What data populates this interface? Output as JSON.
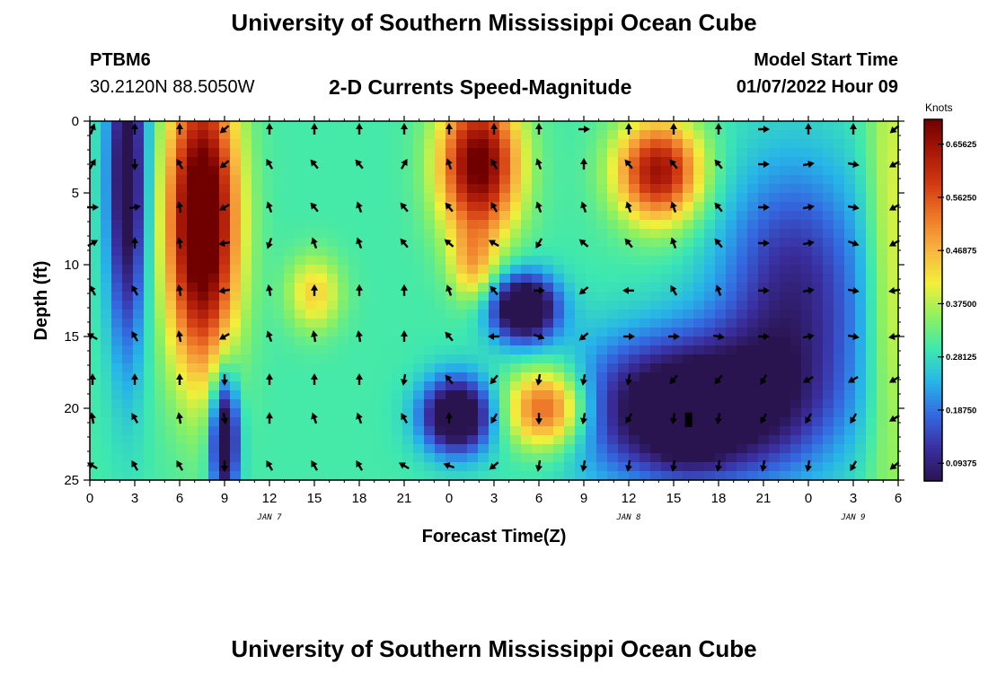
{
  "header": {
    "title": "University of Southern Mississippi Ocean Cube",
    "station": "PTBM6",
    "coords": "30.2120N  88.5050W",
    "subtitle": "2-D Currents Speed-Magnitude",
    "start_label": "Model Start Time",
    "start_time": "01/07/2022 Hour 09"
  },
  "footer": {
    "title": "University of Southern Mississippi Ocean Cube"
  },
  "chart_data": {
    "type": "heatmap",
    "xlabel": "Forecast Time(Z)",
    "ylabel": "Depth (ft)",
    "x_ticks": [
      "0",
      "3",
      "6",
      "9",
      "12",
      "15",
      "18",
      "21",
      "0",
      "3",
      "6",
      "9",
      "12",
      "15",
      "18",
      "21",
      "0",
      "3",
      "6"
    ],
    "x_range_hours": [
      0,
      54
    ],
    "date_labels": [
      {
        "text": "JAN 7",
        "hour": 12
      },
      {
        "text": "JAN 8",
        "hour": 36
      },
      {
        "text": "JAN 9",
        "hour": 51
      }
    ],
    "y_ticks": [
      "0",
      "5",
      "10",
      "15",
      "20",
      "25"
    ],
    "y_range": [
      0,
      25
    ],
    "y_inverted": true,
    "colorbar": {
      "unit": "Knots",
      "range": [
        0.0625,
        0.7
      ],
      "labels": [
        "0.65625",
        "0.56250",
        "0.46875",
        "0.37500",
        "0.28125",
        "0.18750",
        "0.09375"
      ],
      "stops": [
        "#2a1450",
        "#3a2fa0",
        "#3468e0",
        "#27b4e8",
        "#3de8b0",
        "#8ef060",
        "#f2f03a",
        "#f7b640",
        "#ee7a2a",
        "#d23c12",
        "#a81808",
        "#700000"
      ]
    },
    "speed_features": [
      {
        "hour": 2.5,
        "depth": 4,
        "sx": 1.3,
        "sy": 12,
        "value": -0.28
      },
      {
        "hour": 7.5,
        "depth": 7,
        "sx": 2.3,
        "sy": 10,
        "value": 0.5
      },
      {
        "hour": 9.0,
        "depth": 22,
        "sx": 0.9,
        "sy": 4.5,
        "value": -0.33
      },
      {
        "hour": 15.0,
        "depth": 12,
        "sx": 1.8,
        "sy": 2.6,
        "value": 0.14
      },
      {
        "hour": 24.5,
        "depth": 20.5,
        "sx": 2.3,
        "sy": 2.6,
        "value": -0.34
      },
      {
        "hour": 26.0,
        "depth": 3,
        "sx": 2.6,
        "sy": 5,
        "value": 0.42
      },
      {
        "hour": 25.6,
        "depth": 10,
        "sx": 1.5,
        "sy": 2.6,
        "value": 0.14
      },
      {
        "hour": 29.0,
        "depth": 13,
        "sx": 2.2,
        "sy": 2.3,
        "value": -0.36
      },
      {
        "hour": 30.5,
        "depth": 20,
        "sx": 2.7,
        "sy": 2.8,
        "value": 0.3
      },
      {
        "hour": 38.0,
        "depth": 3.5,
        "sx": 2.8,
        "sy": 3.5,
        "value": 0.36
      },
      {
        "hour": 40.0,
        "depth": 20,
        "sx": 7.5,
        "sy": 5,
        "value": -0.33
      },
      {
        "hour": 40.0,
        "depth": 21,
        "sx": 2.3,
        "sy": 2.6,
        "value": -0.12
      },
      {
        "hour": 47.0,
        "depth": 12,
        "sx": 5,
        "sy": 9,
        "value": -0.2
      },
      {
        "hour": 53.5,
        "depth": 10,
        "sx": 1.6,
        "sy": 18,
        "value": 0.12
      }
    ],
    "vectors": {
      "hours": [
        0,
        3,
        6,
        9,
        12,
        15,
        18,
        21,
        24,
        27,
        30,
        33,
        36,
        39,
        42,
        45,
        48,
        51,
        54
      ],
      "depths": [
        0.5,
        3,
        6,
        8.5,
        11.8,
        15,
        18,
        20.7,
        24
      ],
      "angles_deg": [
        [
          20,
          0,
          0,
          -130,
          0,
          0,
          0,
          0,
          0,
          0,
          0,
          90,
          0,
          0,
          0,
          90,
          0,
          0,
          -130
        ],
        [
          30,
          180,
          -30,
          -130,
          -30,
          -40,
          -40,
          30,
          -20,
          -30,
          -20,
          0,
          -40,
          -40,
          -40,
          90,
          80,
          100,
          -120
        ],
        [
          90,
          80,
          -10,
          -120,
          -20,
          -40,
          -20,
          -40,
          -40,
          -30,
          -20,
          -20,
          -20,
          -20,
          -40,
          90,
          80,
          100,
          -120
        ],
        [
          60,
          0,
          -10,
          -100,
          -160,
          -20,
          -20,
          -40,
          -50,
          -60,
          -150,
          -50,
          -40,
          -20,
          -40,
          90,
          80,
          110,
          -120
        ],
        [
          -30,
          -30,
          -10,
          -100,
          -10,
          0,
          0,
          0,
          -20,
          -40,
          90,
          -130,
          -90,
          -30,
          -20,
          90,
          80,
          100,
          -100
        ],
        [
          -60,
          -30,
          -10,
          -120,
          -20,
          -10,
          -10,
          0,
          -40,
          -90,
          110,
          -130,
          90,
          90,
          100,
          90,
          80,
          100,
          -100
        ],
        [
          0,
          0,
          0,
          180,
          0,
          0,
          0,
          -170,
          -40,
          -140,
          -170,
          -170,
          -170,
          -140,
          -140,
          -150,
          -120,
          -120,
          -120
        ],
        [
          -10,
          -30,
          -10,
          170,
          0,
          -20,
          -20,
          -30,
          0,
          -150,
          -180,
          -170,
          -150,
          -170,
          -170,
          -150,
          -150,
          -150,
          -120
        ],
        [
          -60,
          -30,
          -30,
          180,
          -30,
          -30,
          -30,
          -60,
          -70,
          -130,
          -170,
          -170,
          -170,
          -170,
          -170,
          -170,
          -170,
          -150,
          -130
        ]
      ]
    },
    "marker": {
      "hour": 40,
      "depth": 20.8
    }
  }
}
